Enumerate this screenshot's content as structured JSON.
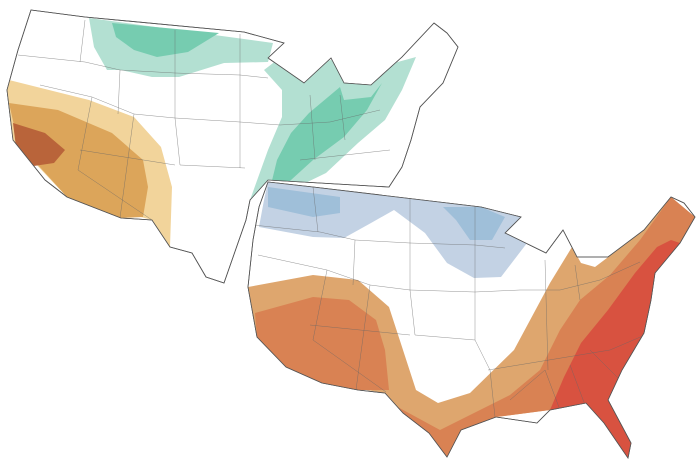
{
  "maps": [
    {
      "id": "precipitation-outlook",
      "colors": {
        "wet_light": "#b3e0d2",
        "wet_medium": "#76ccb0",
        "dry_light": "#f2d49b",
        "dry_medium": "#dca55a",
        "dry_dark": "#b9643a"
      }
    },
    {
      "id": "temperature-outlook",
      "colors": {
        "cold_light": "#c3d2e4",
        "cold_medium": "#9fbfd9",
        "warm_light": "#dea66e",
        "warm_medium": "#d98253",
        "warm_dark": "#d85240"
      }
    }
  ]
}
